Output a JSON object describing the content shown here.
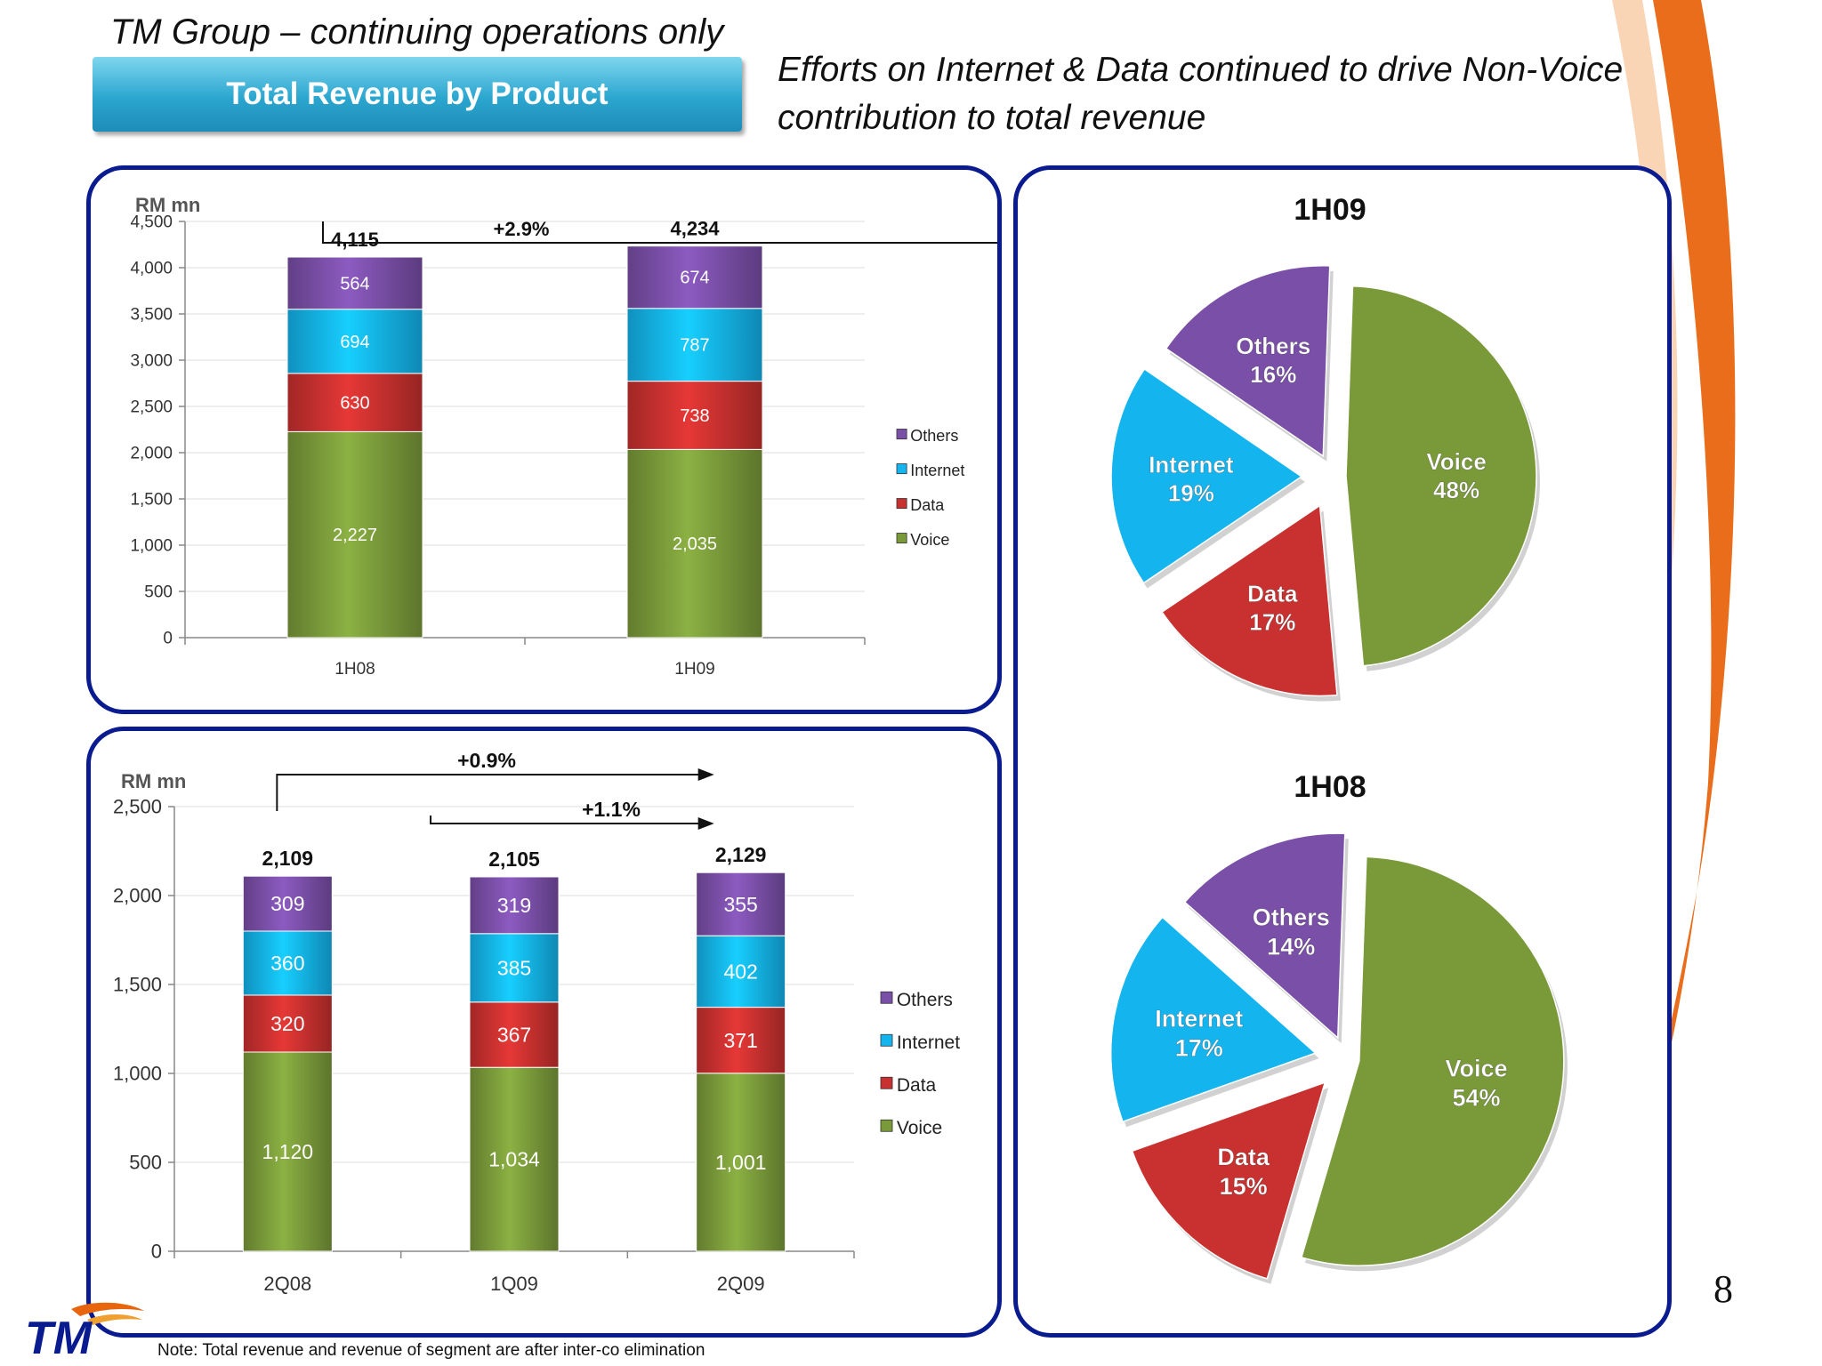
{
  "slide": {
    "group_title": "TM Group – continuing operations only",
    "section_button": "Total Revenue by Product",
    "headline": "Efforts on Internet & Data continued to drive Non-Voice contribution to total revenue",
    "page_number": "8",
    "footnote": "Note: Total revenue and revenue of segment are after inter-co elimination",
    "logo_text": "TM",
    "colors": {
      "voice": "#7a9a3a",
      "data": "#c8312f",
      "internet": "#14b4ee",
      "others": "#7a4fa8",
      "panel_border": "#0a1b8f",
      "swoosh": "#e8650e"
    }
  },
  "chart_data": [
    {
      "type": "bar",
      "stacked": true,
      "unit_label": "RM mn",
      "categories": [
        "1H08",
        "1H09"
      ],
      "series": [
        {
          "name": "Voice",
          "values": [
            2227,
            2035
          ]
        },
        {
          "name": "Data",
          "values": [
            630,
            738
          ]
        },
        {
          "name": "Internet",
          "values": [
            694,
            787
          ]
        },
        {
          "name": "Others",
          "values": [
            564,
            674
          ]
        }
      ],
      "totals": [
        "4,115",
        "4,234"
      ],
      "value_labels": [
        [
          "2,227",
          "2,035"
        ],
        [
          "630",
          "738"
        ],
        [
          "694",
          "787"
        ],
        [
          "564",
          "674"
        ]
      ],
      "growth": [
        {
          "label": "+2.9%",
          "from": "1H08",
          "to": "1H09"
        }
      ],
      "ylim": [
        0,
        4500
      ],
      "yticks": [
        0,
        500,
        1000,
        1500,
        2000,
        2500,
        3000,
        3500,
        4000,
        4500
      ],
      "ytick_labels": [
        "0",
        "500",
        "1,000",
        "1,500",
        "2,000",
        "2,500",
        "3,000",
        "3,500",
        "4,000",
        "4,500"
      ],
      "legend": [
        "Others",
        "Internet",
        "Data",
        "Voice"
      ],
      "legend_position": "right"
    },
    {
      "type": "bar",
      "stacked": true,
      "unit_label": "RM mn",
      "categories": [
        "2Q08",
        "1Q09",
        "2Q09"
      ],
      "series": [
        {
          "name": "Voice",
          "values": [
            1120,
            1034,
            1001
          ]
        },
        {
          "name": "Data",
          "values": [
            320,
            367,
            371
          ]
        },
        {
          "name": "Internet",
          "values": [
            360,
            385,
            402
          ]
        },
        {
          "name": "Others",
          "values": [
            309,
            319,
            355
          ]
        }
      ],
      "totals": [
        "2,109",
        "2,105",
        "2,129"
      ],
      "value_labels": [
        [
          "1,120",
          "1,034",
          "1,001"
        ],
        [
          "320",
          "367",
          "371"
        ],
        [
          "360",
          "385",
          "402"
        ],
        [
          "309",
          "319",
          "355"
        ]
      ],
      "growth": [
        {
          "label": "+0.9%",
          "from": "2Q08",
          "to": "2Q09"
        },
        {
          "label": "+1.1%",
          "from": "1Q09",
          "to": "2Q09"
        }
      ],
      "ylim": [
        0,
        2500
      ],
      "yticks": [
        0,
        500,
        1000,
        1500,
        2000,
        2500
      ],
      "ytick_labels": [
        "0",
        "500",
        "1,000",
        "1,500",
        "2,000",
        "2,500"
      ],
      "legend": [
        "Others",
        "Internet",
        "Data",
        "Voice"
      ],
      "legend_position": "right"
    },
    {
      "type": "pie",
      "title": "1H09",
      "slices": [
        {
          "name": "Voice",
          "value": 48,
          "label": "48%"
        },
        {
          "name": "Data",
          "value": 17,
          "label": "17%"
        },
        {
          "name": "Internet",
          "value": 19,
          "label": "19%"
        },
        {
          "name": "Others",
          "value": 16,
          "label": "16%"
        }
      ],
      "exploded": true
    },
    {
      "type": "pie",
      "title": "1H08",
      "slices": [
        {
          "name": "Voice",
          "value": 54,
          "label": "54%"
        },
        {
          "name": "Data",
          "value": 15,
          "label": "15%"
        },
        {
          "name": "Internet",
          "value": 17,
          "label": "17%"
        },
        {
          "name": "Others",
          "value": 14,
          "label": "14%"
        }
      ],
      "exploded": true
    }
  ]
}
